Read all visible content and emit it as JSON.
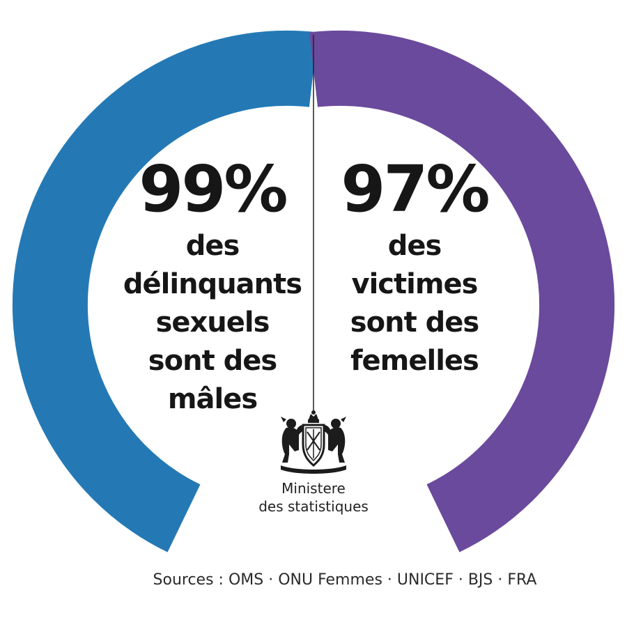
{
  "colors": {
    "left_arc": "#2479b5",
    "right_arc": "#6a4a9c",
    "divider": "#222222",
    "text": "#161616"
  },
  "ring": {
    "shape": "open circle split vertically, left half blue, right half purple, gap at bottom"
  },
  "left_stat": {
    "value": "99%",
    "description": "des\ndélinquants\nsexuels\nsont des\nmâles"
  },
  "right_stat": {
    "value": "97%",
    "description": "des\nvictimes\nsont des\nfemelles"
  },
  "emblem": {
    "icon": "coat-of-arms-icon",
    "label": "Ministere\ndes statistiques"
  },
  "footer": {
    "sources": "Sources : OMS · ONU Femmes · UNICEF · BJS · FRA"
  }
}
